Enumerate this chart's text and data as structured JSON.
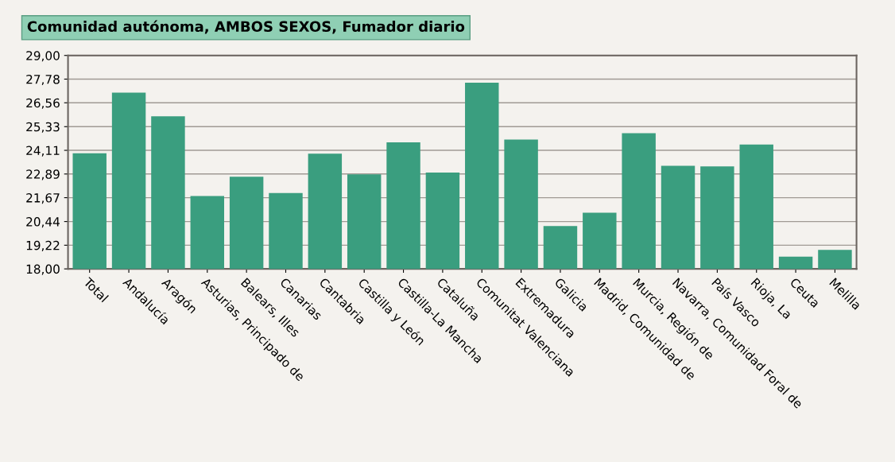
{
  "chart_data": {
    "type": "bar",
    "title": "Comunidad autónoma, AMBOS SEXOS, Fumador diario",
    "categories": [
      "Total",
      "Andalucía",
      "Aragón",
      "Asturias, Principado de",
      "Balears, Illes",
      "Canarias",
      "Cantabria",
      "Castilla y León",
      "Castilla-La Mancha",
      "Cataluña",
      "Comunitat Valenciana",
      "Extremadura",
      "Galicia",
      "Madrid, Comunidad de",
      "Murcia, Región de",
      "Navarra, Comunidad Foral de",
      "País Vasco",
      "Rioja, La",
      "Ceuta",
      "Melilla"
    ],
    "values": [
      23.96,
      27.08,
      25.86,
      21.76,
      22.75,
      21.91,
      23.94,
      22.87,
      24.52,
      22.96,
      27.6,
      24.67,
      20.21,
      20.9,
      24.99,
      23.31,
      23.28,
      24.41,
      18.63,
      18.98
    ],
    "color": "#3a9e7f",
    "ylim": [
      18,
      29
    ],
    "yticks": [
      {
        "value": 18,
        "label": "18,00"
      },
      {
        "value": 19.22,
        "label": "19,22"
      },
      {
        "value": 20.44,
        "label": "20,44"
      },
      {
        "value": 21.67,
        "label": "21,67"
      },
      {
        "value": 22.89,
        "label": "22,89"
      },
      {
        "value": 24.11,
        "label": "24,11"
      },
      {
        "value": 25.33,
        "label": "25,33"
      },
      {
        "value": 26.56,
        "label": "26,56"
      },
      {
        "value": 27.78,
        "label": "27,78"
      },
      {
        "value": 29,
        "label": "29,00"
      }
    ],
    "grid": "y"
  }
}
